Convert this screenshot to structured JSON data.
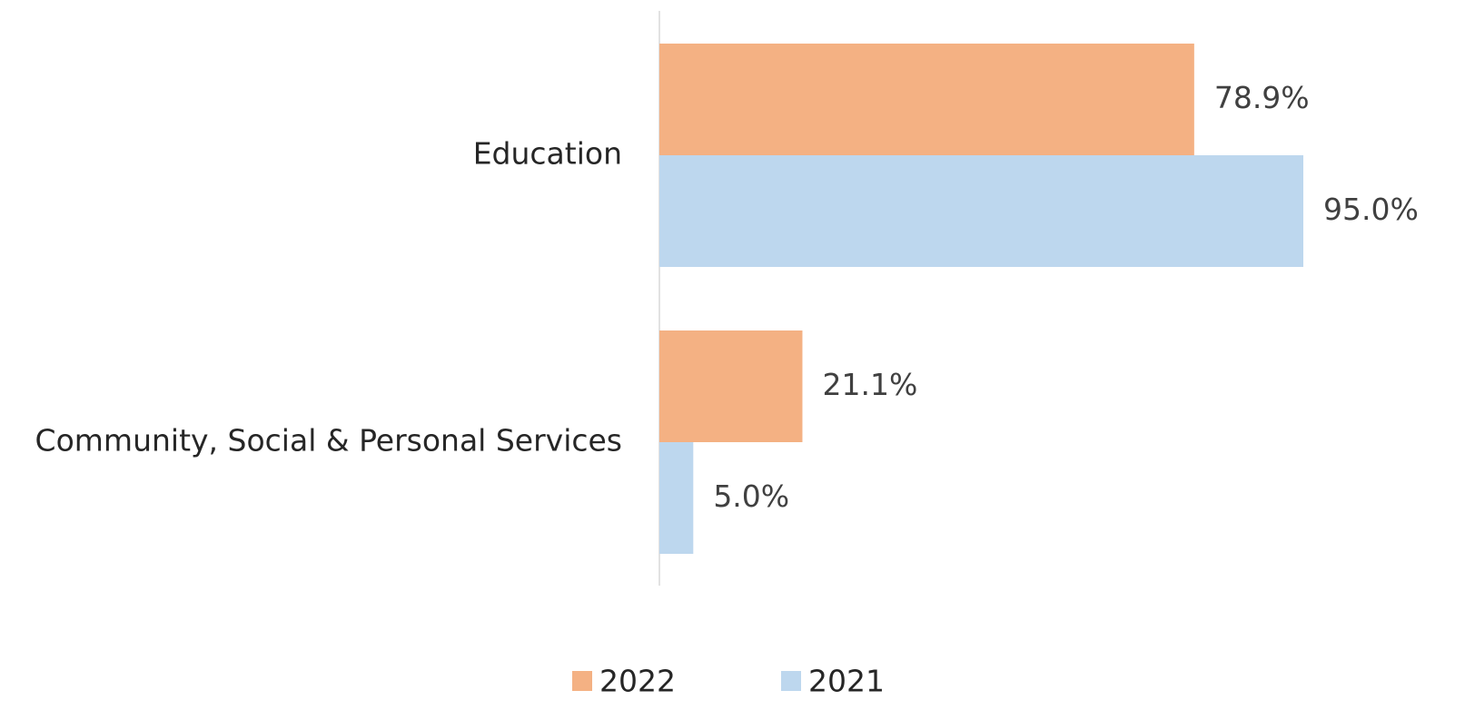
{
  "chart_data": {
    "type": "bar",
    "orientation": "horizontal",
    "categories": [
      "Education",
      "Community, Social & Personal Services"
    ],
    "series": [
      {
        "name": "2022",
        "color": "#f4b183",
        "values": [
          78.9,
          21.1
        ],
        "value_labels": [
          "78.9%",
          "21.1%"
        ]
      },
      {
        "name": "2021",
        "color": "#bdd7ee",
        "values": [
          95.0,
          5.0
        ],
        "value_labels": [
          "95.0%",
          "5.0%"
        ]
      }
    ],
    "legend": "bottom"
  }
}
